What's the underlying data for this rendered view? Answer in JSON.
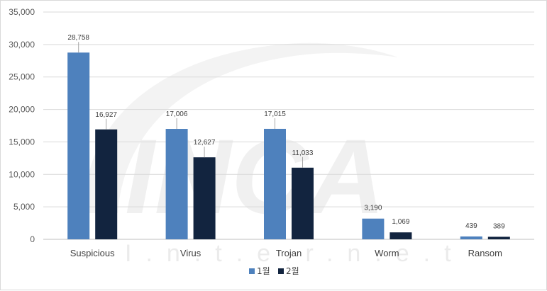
{
  "chart_data": {
    "type": "bar",
    "categories": [
      "Suspicious",
      "Virus",
      "Trojan",
      "Worm",
      "Ransom"
    ],
    "series": [
      {
        "name": "1월",
        "values": [
          28758,
          17006,
          17015,
          3190,
          439
        ],
        "labels": [
          "28,758",
          "17,006",
          "17,015",
          "3,190",
          "439"
        ],
        "color": "#4e81bd"
      },
      {
        "name": "2월",
        "values": [
          16927,
          12627,
          11033,
          1069,
          389
        ],
        "labels": [
          "16,927",
          "12,627",
          "11,033",
          "1,069",
          "389"
        ],
        "color": "#12243f"
      }
    ],
    "ylim": [
      0,
      35000
    ],
    "yticks": [
      0,
      5000,
      10000,
      15000,
      20000,
      25000,
      30000,
      35000
    ],
    "ytick_labels": [
      "0",
      "5,000",
      "10,000",
      "15,000",
      "20,000",
      "25,000",
      "30,000",
      "35,000"
    ],
    "grid": true,
    "legend_position": "bottom",
    "title": "",
    "xlabel": "",
    "ylabel": ""
  },
  "watermark": {
    "logo_text": "INCA",
    "tagline": "I.n.t.e.r.n.e.t"
  }
}
